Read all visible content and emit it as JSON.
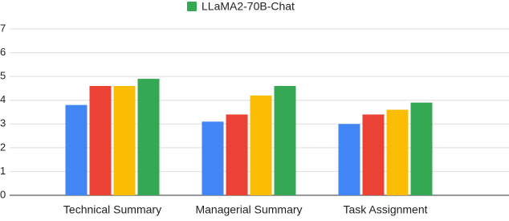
{
  "chart_data": {
    "type": "bar",
    "categories": [
      "Technical Summary",
      "Managerial Summary",
      "Task Assignment"
    ],
    "series": [
      {
        "color": "#4285f4",
        "values": [
          3.8,
          3.1,
          3.0
        ]
      },
      {
        "color": "#ea4335",
        "values": [
          4.6,
          3.4,
          3.4
        ]
      },
      {
        "color": "#fbbc04",
        "values": [
          4.6,
          4.2,
          3.6
        ]
      },
      {
        "name": "LLaMA2-70B-Chat",
        "color": "#34a853",
        "values": [
          4.9,
          4.6,
          3.9
        ]
      }
    ],
    "ylim": [
      0,
      7
    ],
    "yticks": [
      0,
      1,
      2,
      3,
      4,
      5,
      6,
      7
    ],
    "grid": true
  }
}
